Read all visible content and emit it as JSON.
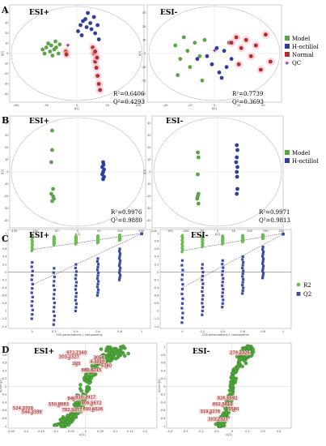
{
  "figure": {
    "panels": [
      "A",
      "B",
      "C",
      "D"
    ],
    "modes": {
      "pos": "ESI+",
      "neg": "ESI-"
    },
    "stats": {
      "a_pos": [
        "R²=0.6406",
        "Q²=0.4293"
      ],
      "a_neg": [
        "R²=0.7739",
        "Q²=0.3693"
      ],
      "b_pos": [
        "R²=0.9976",
        "Q²=0.9880"
      ],
      "b_neg": [
        "R²=0.9971",
        "Q²=0.9813"
      ]
    },
    "legend_a": [
      "Model",
      "H-octillol",
      "Normal",
      "QC"
    ],
    "legend_b": [
      "Model",
      "H-octillol"
    ],
    "legend_c": [
      "R2",
      "Q2"
    ],
    "perm_xlabel": "200 permutations 1 components",
    "colors": {
      "model": "#5ba448",
      "hoct": "#2f3e9e",
      "normal": "#b42d2d",
      "qc": "#9b3fa8",
      "perm_green": "#6dbb54",
      "perm_blue": "#3b4ba8"
    }
  },
  "chart_data": [
    {
      "panel": "A-ESI+",
      "type": "scatter",
      "xlabel": "t[1]",
      "ylabel": "t[2]",
      "xticks": [
        "-100",
        "-50",
        "0",
        "50",
        "100"
      ],
      "yticks": [
        "40",
        "30",
        "20",
        "10",
        "0",
        "-10",
        "-20",
        "-30",
        "-40"
      ],
      "xlim": [
        -110,
        110
      ],
      "ylim": [
        -48,
        48
      ],
      "series": [
        {
          "name": "Model",
          "points": [
            [
              -56,
              4
            ],
            [
              -53,
              0
            ],
            [
              -50,
              6
            ],
            [
              -47,
              10
            ],
            [
              -44,
              2
            ],
            [
              -42,
              8
            ],
            [
              -40,
              -2
            ],
            [
              -37,
              4
            ],
            [
              -35,
              12
            ],
            [
              -34,
              6
            ],
            [
              -30,
              0
            ],
            [
              -28,
              9
            ]
          ]
        },
        {
          "name": "H-octillol",
          "points": [
            [
              2,
              22
            ],
            [
              6,
              28
            ],
            [
              10,
              32
            ],
            [
              14,
              34
            ],
            [
              18,
              40
            ],
            [
              22,
              30
            ],
            [
              24,
              24
            ],
            [
              28,
              36
            ],
            [
              30,
              20
            ],
            [
              34,
              28
            ],
            [
              36,
              14
            ],
            [
              8,
              18
            ],
            [
              16,
              26
            ]
          ]
        },
        {
          "name": "Normal",
          "points": [
            [
              26,
              6
            ],
            [
              28,
              0
            ],
            [
              30,
              -8
            ],
            [
              32,
              -14
            ],
            [
              34,
              -22
            ],
            [
              36,
              -30
            ],
            [
              38,
              -36
            ],
            [
              30,
              2
            ],
            [
              33,
              -4
            ],
            [
              -18,
              2
            ],
            [
              -17,
              -1
            ]
          ]
        },
        {
          "name": "QC",
          "points": [
            [
              -15,
              8
            ]
          ]
        }
      ]
    },
    {
      "panel": "A-ESI-",
      "type": "scatter",
      "xlabel": "t[1]",
      "ylabel": "t[2]",
      "xticks": [
        "-40",
        "-20",
        "0",
        "20",
        "40"
      ],
      "yticks": [
        "30",
        "20",
        "10",
        "0",
        "-10",
        "-20",
        "-30",
        "-40"
      ],
      "xlim": [
        -55,
        55
      ],
      "ylim": [
        -36,
        36
      ],
      "series": [
        {
          "name": "Model",
          "points": [
            [
              -32,
              6
            ],
            [
              -28,
              -4
            ],
            [
              -25,
              12
            ],
            [
              -22,
              2
            ],
            [
              -20,
              -10
            ],
            [
              -16,
              8
            ],
            [
              -12,
              -2
            ],
            [
              -8,
              10
            ],
            [
              -30,
              -16
            ],
            [
              -10,
              -20
            ]
          ]
        },
        {
          "name": "H-octillol",
          "points": [
            [
              -14,
              -4
            ],
            [
              -6,
              -2
            ],
            [
              -2,
              -8
            ],
            [
              2,
              4
            ],
            [
              4,
              -14
            ],
            [
              8,
              2
            ],
            [
              10,
              -10
            ],
            [
              12,
              8
            ],
            [
              14,
              -4
            ],
            [
              6,
              -18
            ]
          ]
        },
        {
          "name": "Normal",
          "points": [
            [
              14,
              8
            ],
            [
              18,
              12
            ],
            [
              22,
              4
            ],
            [
              26,
              10
            ],
            [
              30,
              -2
            ],
            [
              34,
              6
            ],
            [
              38,
              -12
            ],
            [
              42,
              14
            ],
            [
              46,
              -6
            ],
            [
              20,
              -8
            ]
          ]
        },
        {
          "name": "QC",
          "points": [
            [
              0,
              2
            ]
          ]
        }
      ]
    },
    {
      "panel": "B-ESI+",
      "type": "scatter",
      "xlabel": "t[1]",
      "ylabel": "t[2]",
      "xticks": [
        "-150",
        "-100",
        "-50",
        "0",
        "50",
        "100",
        "150"
      ],
      "yticks": [
        "40",
        "30",
        "20",
        "10",
        "0",
        "-10",
        "-20",
        "-30",
        "-40"
      ],
      "xlim": [
        -160,
        160
      ],
      "ylim": [
        -46,
        46
      ],
      "series": [
        {
          "name": "Model",
          "points": [
            [
              -60,
              34
            ],
            [
              -60,
              18
            ],
            [
              -62,
              8
            ],
            [
              -58,
              -14
            ],
            [
              -62,
              -18
            ],
            [
              -56,
              -22
            ],
            [
              -60,
              -24
            ],
            [
              -58,
              -20
            ]
          ]
        },
        {
          "name": "H-octillol",
          "points": [
            [
              60,
              8
            ],
            [
              58,
              4
            ],
            [
              62,
              2
            ],
            [
              60,
              0
            ],
            [
              58,
              -2
            ],
            [
              62,
              -4
            ],
            [
              60,
              -6
            ],
            [
              61,
              6
            ]
          ]
        }
      ]
    },
    {
      "panel": "B-ESI-",
      "type": "scatter",
      "xlabel": "t[1]",
      "ylabel": "t[2]",
      "xticks": [
        "-200",
        "-150",
        "-100",
        "-50",
        "0",
        "50",
        "100",
        "150",
        "200"
      ],
      "yticks": [
        "40",
        "30",
        "20",
        "10",
        "0",
        "-10",
        "-20",
        "-30",
        "-40"
      ],
      "xlim": [
        -205,
        205
      ],
      "ylim": [
        -46,
        46
      ],
      "series": [
        {
          "name": "Model",
          "points": [
            [
              -62,
              16
            ],
            [
              -60,
              12
            ],
            [
              -62,
              -2
            ],
            [
              -60,
              -18
            ],
            [
              -64,
              -22
            ],
            [
              -60,
              -26
            ],
            [
              -62,
              -20
            ]
          ]
        },
        {
          "name": "H-octillol",
          "points": [
            [
              60,
              22
            ],
            [
              62,
              18
            ],
            [
              60,
              12
            ],
            [
              58,
              8
            ],
            [
              62,
              4
            ],
            [
              60,
              0
            ],
            [
              61,
              -4
            ],
            [
              62,
              -14
            ],
            [
              60,
              -18
            ]
          ]
        }
      ]
    },
    {
      "panel": "C-ESI+",
      "type": "scatter",
      "xlabel": "200 permutations 1 components",
      "xticks": [
        "0",
        "0.2",
        "0.4",
        "0.6",
        "0.8",
        "1"
      ],
      "yticks": [
        "1",
        "0.8",
        "0.6",
        "0.4",
        "0.2",
        "0",
        "-0.2",
        "-0.4",
        "-0.6",
        "-0.8",
        "-1",
        "-1.2",
        "-1.4"
      ],
      "xlim": [
        -0.22,
        1.08
      ],
      "ylim": [
        -1.45,
        1.1
      ],
      "series": [
        {
          "name": "R2",
          "intercept_line": [
            [
              0,
              0.58
            ],
            [
              1,
              1.0
            ]
          ],
          "columns": [
            [
              0,
              0.55,
              0.95
            ],
            [
              0.2,
              0.7,
              0.92
            ],
            [
              0.4,
              0.72,
              0.93
            ],
            [
              0.6,
              0.75,
              0.94
            ],
            [
              0.8,
              0.82,
              0.96
            ]
          ],
          "final": [
            1,
            0.99
          ]
        },
        {
          "name": "Q2",
          "intercept_line": [
            [
              0,
              -0.33
            ],
            [
              1,
              0.99
            ]
          ],
          "columns": [
            [
              0,
              -1.2,
              0.25
            ],
            [
              0.2,
              -1.35,
              0.1
            ],
            [
              0.4,
              -1.0,
              0.2
            ],
            [
              0.6,
              -0.6,
              0.35
            ],
            [
              0.8,
              -0.2,
              0.6
            ]
          ],
          "final": [
            1,
            0.99
          ]
        }
      ]
    },
    {
      "panel": "C-ESI-",
      "type": "scatter",
      "xlabel": "200 permutations 1 components",
      "xticks": [
        "0",
        "0.2",
        "0.4",
        "0.6",
        "0.8",
        "1"
      ],
      "yticks": [
        "1",
        "0.8",
        "0.6",
        "0.4",
        "0.2",
        "0",
        "-0.2",
        "-0.4",
        "-0.6",
        "-0.8",
        "-1",
        "-1.2",
        "-1.4"
      ],
      "xlim": [
        -0.22,
        1.08
      ],
      "ylim": [
        -1.45,
        1.1
      ],
      "series": [
        {
          "name": "R2",
          "intercept_line": [
            [
              0,
              0.55
            ],
            [
              1,
              1.0
            ]
          ],
          "columns": [
            [
              0,
              0.52,
              0.95
            ],
            [
              0.2,
              0.65,
              0.93
            ],
            [
              0.4,
              0.72,
              0.94
            ],
            [
              0.6,
              0.78,
              0.95
            ],
            [
              0.8,
              0.86,
              0.97
            ]
          ],
          "final": [
            1,
            0.99
          ]
        },
        {
          "name": "Q2",
          "intercept_line": [
            [
              0,
              -0.4
            ],
            [
              1,
              0.98
            ]
          ],
          "columns": [
            [
              0,
              -1.3,
              0.3
            ],
            [
              0.2,
              -1.1,
              0.2
            ],
            [
              0.4,
              -0.9,
              0.3
            ],
            [
              0.6,
              -0.55,
              0.4
            ],
            [
              0.8,
              -0.15,
              0.65
            ]
          ],
          "final": [
            1,
            0.98
          ]
        }
      ]
    },
    {
      "panel": "D-ESI+",
      "type": "scatter",
      "xlabel": "p[1]",
      "ylabel": "p(corr)[1]",
      "xticks": [
        "-0.25",
        "-0.2",
        "-0.15",
        "-0.1",
        "-0.05",
        "0",
        "0.05",
        "0.1",
        "0.15",
        "0.2"
      ],
      "yticks": [
        "1",
        "0.8",
        "0.6",
        "0.4",
        "0.2",
        "0",
        "-0.2",
        "-0.4",
        "-0.6",
        "-0.8",
        "-1"
      ],
      "xlim": [
        -0.26,
        0.24
      ],
      "ylim": [
        -1.05,
        1.1
      ],
      "annotations": [
        {
          "label": "972.7340",
          "point": [
            -0.03,
            0.82
          ]
        },
        {
          "label": "303.2327",
          "point": [
            -0.055,
            0.72
          ]
        },
        {
          "label": "3054",
          "point": [
            0.045,
            0.7
          ]
        },
        {
          "label": "4.3010",
          "point": [
            0.04,
            0.6
          ]
        },
        {
          "label": "205",
          "point": [
            -0.03,
            0.55
          ]
        },
        {
          "label": "5740",
          "point": [
            0.07,
            0.5
          ]
        },
        {
          "label": "880.6015",
          "point": [
            0.02,
            0.38
          ]
        },
        {
          "label": "846.6",
          "point": [
            -0.04,
            -0.33
          ]
        },
        {
          "label": "810.3917",
          "point": [
            0.0,
            -0.3
          ]
        },
        {
          "label": "550.8883",
          "point": [
            -0.09,
            -0.48
          ]
        },
        {
          "label": "806.5672",
          "point": [
            0.02,
            -0.45
          ]
        },
        {
          "label": "524.3709",
          "point": [
            -0.21,
            -0.58
          ]
        },
        {
          "label": "782.5077",
          "point": [
            -0.045,
            -0.62
          ]
        },
        {
          "label": "890.6626",
          "point": [
            0.025,
            -0.6
          ]
        },
        {
          "label": "544.3398",
          "point": [
            -0.18,
            -0.67
          ]
        }
      ]
    },
    {
      "panel": "D-ESI-",
      "type": "scatter",
      "xlabel": "p[1]",
      "ylabel": "p(corr)[1]",
      "xticks": [
        "-0.4",
        "-0.3",
        "-0.2",
        "-0.1",
        "0",
        "0.1",
        "0.2",
        "0.3"
      ],
      "yticks": [
        "1",
        "0.8",
        "0.6",
        "0.4",
        "0.2",
        "0",
        "-0.2",
        "-0.4",
        "-0.6",
        "-0.8",
        "-1"
      ],
      "xlim": [
        -0.42,
        0.38
      ],
      "ylim": [
        -1.05,
        1.1
      ],
      "annotations": [
        {
          "label": "279.2325",
          "point": [
            0.05,
            0.82
          ]
        },
        {
          "label": "826.5592",
          "point": [
            -0.03,
            -0.32
          ]
        },
        {
          "label": "802.5610",
          "point": [
            -0.06,
            -0.48
          ]
        },
        {
          "label": "5580",
          "point": [
            0.01,
            -0.6
          ]
        },
        {
          "label": "319.2276",
          "point": [
            -0.14,
            -0.66
          ]
        },
        {
          "label": "303.2327",
          "point": [
            -0.09,
            -0.86
          ]
        }
      ]
    }
  ]
}
